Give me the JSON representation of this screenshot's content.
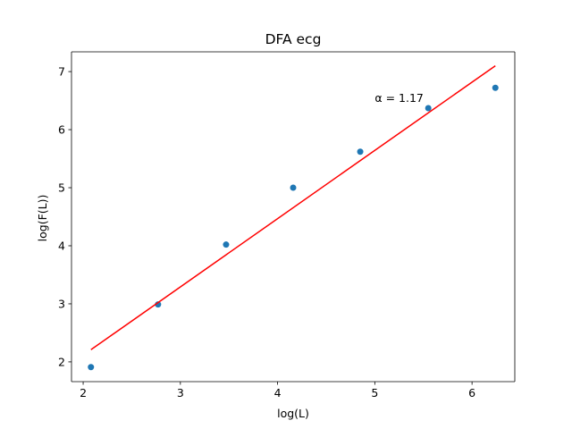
{
  "chart_data": {
    "type": "scatter",
    "title": "DFA ecg",
    "xlabel": "log(L)",
    "ylabel": "log(F(L))",
    "xlim": [
      1.88,
      6.44
    ],
    "ylim": [
      1.66,
      7.34
    ],
    "xticks": [
      2,
      3,
      4,
      5,
      6
    ],
    "yticks": [
      2,
      3,
      4,
      5,
      6,
      7
    ],
    "grid": false,
    "series": [
      {
        "type": "scatter",
        "color": "#1f77b4",
        "x": [
          2.08,
          2.77,
          3.47,
          4.16,
          4.85,
          5.55,
          6.24
        ],
        "y": [
          1.91,
          2.99,
          4.02,
          5.0,
          5.62,
          6.37,
          6.72
        ]
      },
      {
        "type": "line",
        "color": "#ff0000",
        "x": [
          2.08,
          6.24
        ],
        "y": [
          2.21,
          7.1
        ]
      }
    ],
    "annotations": [
      {
        "text": "α = 1.17",
        "x": 5.0,
        "y": 6.48
      }
    ]
  }
}
